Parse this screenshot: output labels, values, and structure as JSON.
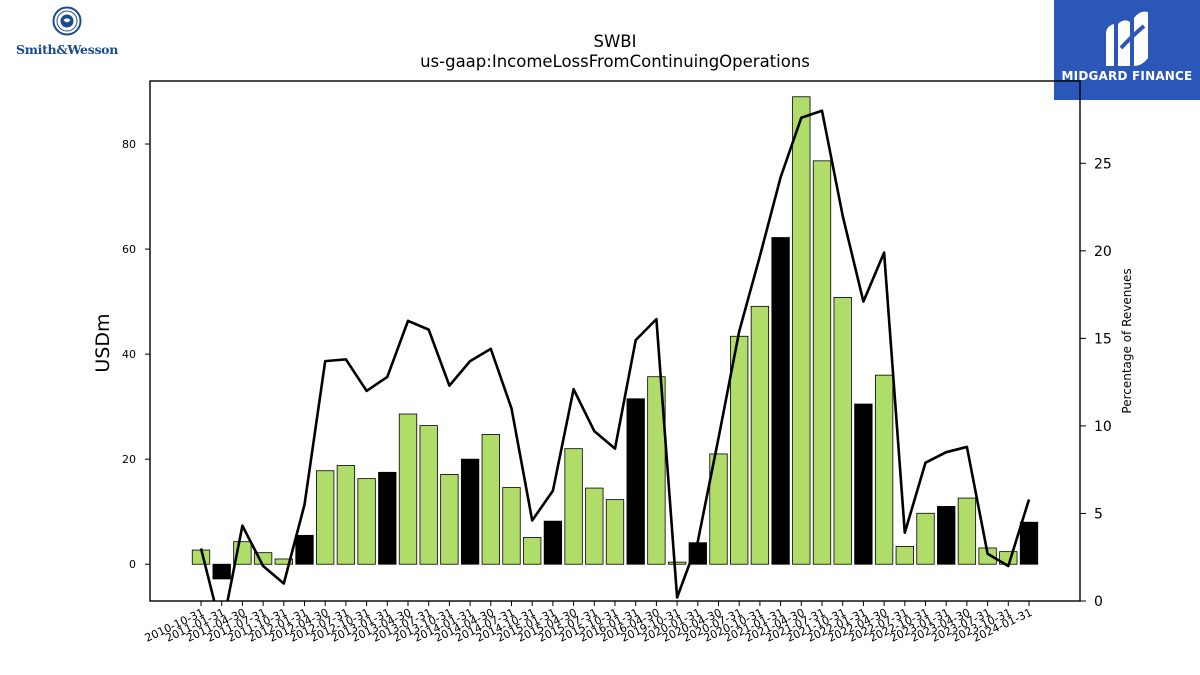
{
  "header": {
    "ticker": "SWBI",
    "metric": "us-gaap:IncomeLossFromContinuingOperations"
  },
  "logos": {
    "left_brand": "Smith&Wesson",
    "right_brand": "MIDGARD FINANCE"
  },
  "colors": {
    "positive_bar": "#b0dc69",
    "highlight_bar": "#000000",
    "line": "#000000",
    "brand_blue": "#2b57b8"
  },
  "chart_data": {
    "type": "bar",
    "categories": [
      "2010-10-31",
      "2011-01-31",
      "2011-04-30",
      "2011-07-31",
      "2011-10-31",
      "2012-01-31",
      "2012-04-30",
      "2012-07-31",
      "2012-10-31",
      "2013-01-31",
      "2013-04-30",
      "2013-07-31",
      "2013-10-31",
      "2014-01-31",
      "2014-04-30",
      "2014-07-31",
      "2014-10-31",
      "2015-01-31",
      "2015-04-30",
      "2015-07-31",
      "2015-10-31",
      "2016-01-31",
      "2016-04-30",
      "2019-10-31",
      "2020-01-31",
      "2020-04-30",
      "2020-07-31",
      "2020-10-31",
      "2021-01-31",
      "2021-04-30",
      "2021-07-31",
      "2021-10-31",
      "2022-01-31",
      "2022-04-30",
      "2022-07-31",
      "2022-10-31",
      "2023-01-31",
      "2023-04-30",
      "2023-07-31",
      "2023-10-31",
      "2024-01-31"
    ],
    "values": [
      2.7,
      -2.8,
      4.3,
      2.2,
      1.0,
      5.5,
      17.8,
      18.8,
      16.3,
      17.5,
      28.6,
      26.4,
      17.1,
      20.0,
      24.7,
      14.6,
      5.1,
      8.2,
      22.0,
      14.5,
      12.3,
      31.5,
      35.7,
      0.4,
      4.1,
      21.0,
      43.4,
      49.1,
      62.2,
      89.0,
      76.8,
      50.8,
      30.5,
      36.0,
      3.4,
      9.7,
      11.0,
      12.6,
      3.1,
      2.4,
      8.0
    ],
    "highlight": [
      false,
      true,
      false,
      false,
      false,
      true,
      false,
      false,
      false,
      true,
      false,
      false,
      false,
      true,
      false,
      false,
      false,
      true,
      false,
      false,
      false,
      true,
      false,
      false,
      true,
      false,
      false,
      false,
      true,
      false,
      false,
      false,
      true,
      false,
      false,
      false,
      true,
      false,
      false,
      false,
      true
    ],
    "series": [
      {
        "values": [
          2.7,
          -2.8,
          4.3,
          2.2,
          1.0,
          5.5,
          17.8,
          18.8,
          16.3,
          17.5,
          28.6,
          26.4,
          17.1,
          20.0,
          24.7,
          14.6,
          5.1,
          8.2,
          22.0,
          14.5,
          12.3,
          31.5,
          35.7,
          0.4,
          4.1,
          21.0,
          43.4,
          49.1,
          62.2,
          89.0,
          76.8,
          50.8,
          30.5,
          36.0,
          3.4,
          9.7,
          11.0,
          12.6,
          3.1,
          2.4,
          8.0
        ],
        "axis": "left"
      },
      {
        "values": [
          3.0,
          -1.7,
          4.3,
          2.0,
          1.0,
          5.5,
          13.7,
          13.8,
          12.0,
          12.8,
          16.0,
          15.5,
          12.3,
          13.7,
          14.4,
          11.0,
          4.6,
          6.3,
          12.1,
          9.7,
          8.7,
          14.9,
          16.1,
          0.2,
          3.4,
          9.3,
          15.4,
          19.7,
          24.2,
          27.6,
          28.0,
          22.0,
          17.1,
          19.9,
          3.9,
          7.9,
          8.5,
          8.8,
          2.7,
          2.0,
          5.8
        ],
        "axis": "right"
      }
    ],
    "ylabel": "USDm",
    "y2label": "Percentage of Revenues",
    "ylim": [
      -7,
      92
    ],
    "y2lim": [
      0,
      29.7
    ],
    "yticks": [
      0,
      20,
      40,
      60,
      80
    ],
    "y2ticks": [
      0,
      5,
      10,
      15,
      20,
      25
    ],
    "grid": false
  }
}
